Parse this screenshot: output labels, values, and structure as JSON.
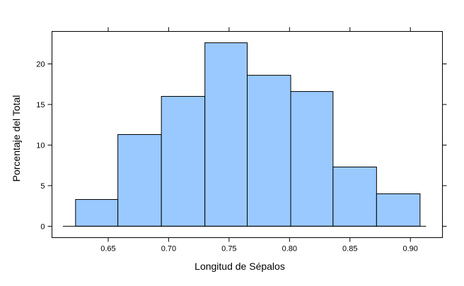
{
  "chart_data": {
    "type": "bar",
    "subtype": "histogram",
    "xlabel": "Longitud de Sépalos",
    "ylabel": "Porcentaje del Total",
    "bins": [
      {
        "start": 0.623,
        "end": 0.658,
        "value": 3.3
      },
      {
        "start": 0.658,
        "end": 0.694,
        "value": 11.3
      },
      {
        "start": 0.694,
        "end": 0.73,
        "value": 16.0
      },
      {
        "start": 0.73,
        "end": 0.765,
        "value": 22.6
      },
      {
        "start": 0.765,
        "end": 0.801,
        "value": 18.6
      },
      {
        "start": 0.801,
        "end": 0.836,
        "value": 16.6
      },
      {
        "start": 0.836,
        "end": 0.872,
        "value": 7.3
      },
      {
        "start": 0.872,
        "end": 0.908,
        "value": 4.0
      }
    ],
    "xticks": [
      "0.65",
      "0.70",
      "0.75",
      "0.80",
      "0.85",
      "0.90"
    ],
    "xtick_values": [
      0.65,
      0.7,
      0.75,
      0.8,
      0.85,
      0.9
    ],
    "yticks": [
      "0",
      "5",
      "10",
      "15",
      "20"
    ],
    "ytick_values": [
      0,
      5,
      10,
      15,
      20
    ],
    "xlim": [
      0.6035,
      0.9265
    ],
    "ylim": [
      -1.4,
      24.0
    ],
    "baseline_extent": [
      0.6125,
      0.913
    ],
    "bar_color": "#99c9ff",
    "edge_color": "#000000",
    "grid": false,
    "legend": "none"
  }
}
